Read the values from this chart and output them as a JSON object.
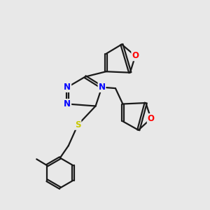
{
  "background_color": "#e8e8e8",
  "bond_color": "#1a1a1a",
  "N_color": "#0000ff",
  "O_color": "#ff0000",
  "S_color": "#c8c800",
  "line_width": 1.6,
  "dbo": 0.055,
  "figsize": [
    3.0,
    3.0
  ],
  "dpi": 100,
  "xlim": [
    0.5,
    9.5
  ],
  "ylim": [
    0.5,
    10.5
  ]
}
